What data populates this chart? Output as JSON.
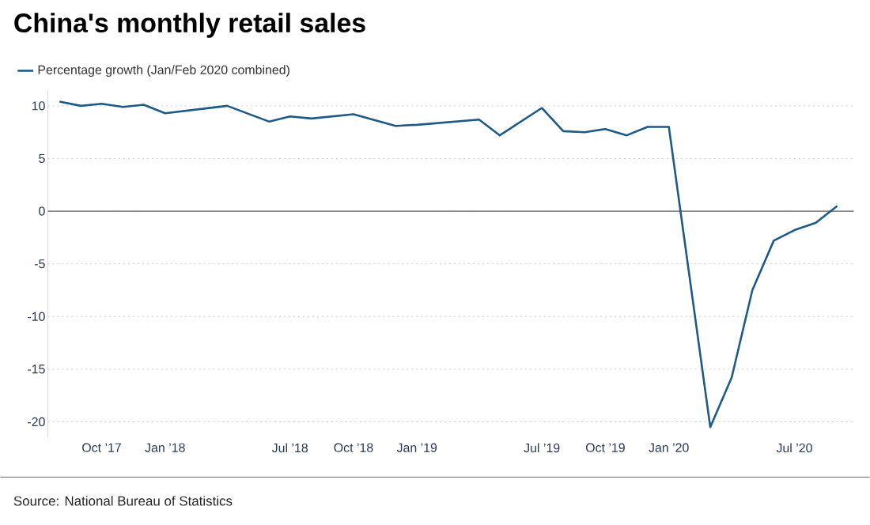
{
  "chart_data": {
    "type": "line",
    "title": "China's monthly retail sales",
    "x": [
      "2017-08",
      "2017-09",
      "2017-10",
      "2017-11",
      "2017-12",
      "2018-01",
      "2018-04",
      "2018-06",
      "2018-07",
      "2018-08",
      "2018-10",
      "2018-12",
      "2019-01",
      "2019-04",
      "2019-05",
      "2019-07",
      "2019-08",
      "2019-09",
      "2019-10",
      "2019-11",
      "2019-12",
      "2020-01",
      "2020-03",
      "2020-04",
      "2020-05",
      "2020-06",
      "2020-07",
      "2020-08",
      "2020-09"
    ],
    "series": [
      {
        "name": "Percentage growth (Jan/Feb 2020 combined)",
        "color": "#1d5a85",
        "values": [
          10.4,
          10.0,
          10.2,
          9.9,
          10.1,
          9.3,
          10.0,
          8.5,
          9.0,
          8.8,
          9.2,
          8.1,
          8.2,
          8.7,
          7.2,
          9.8,
          7.6,
          7.5,
          7.8,
          7.2,
          8.0,
          8.0,
          -20.5,
          -15.8,
          -7.5,
          -2.8,
          -1.8,
          -1.1,
          0.5
        ]
      }
    ],
    "xlim": [
      "2017-07-15",
      "2020-09-25"
    ],
    "xticks": [
      {
        "value": "2017-10",
        "label": "Oct ’17"
      },
      {
        "value": "2018-01",
        "label": "Jan ’18"
      },
      {
        "value": "2018-07",
        "label": "Jul ’18"
      },
      {
        "value": "2018-10",
        "label": "Oct ’18"
      },
      {
        "value": "2019-01",
        "label": "Jan ’19"
      },
      {
        "value": "2019-07",
        "label": "Jul ’19"
      },
      {
        "value": "2019-10",
        "label": "Oct ’19"
      },
      {
        "value": "2020-01",
        "label": "Jan ’20"
      },
      {
        "value": "2020-07",
        "label": "Jul ’20"
      }
    ],
    "ylim": [
      -21.5,
      11.5
    ],
    "yticks": [
      -20,
      -15,
      -10,
      -5,
      0,
      5,
      10
    ],
    "grid": "y",
    "legend": "top left",
    "ref_lines": [
      {
        "axis": "y",
        "value": 0,
        "color": "#8c8c8c"
      }
    ],
    "annotations": [
      "Source: National Bureau of Statistics"
    ]
  }
}
